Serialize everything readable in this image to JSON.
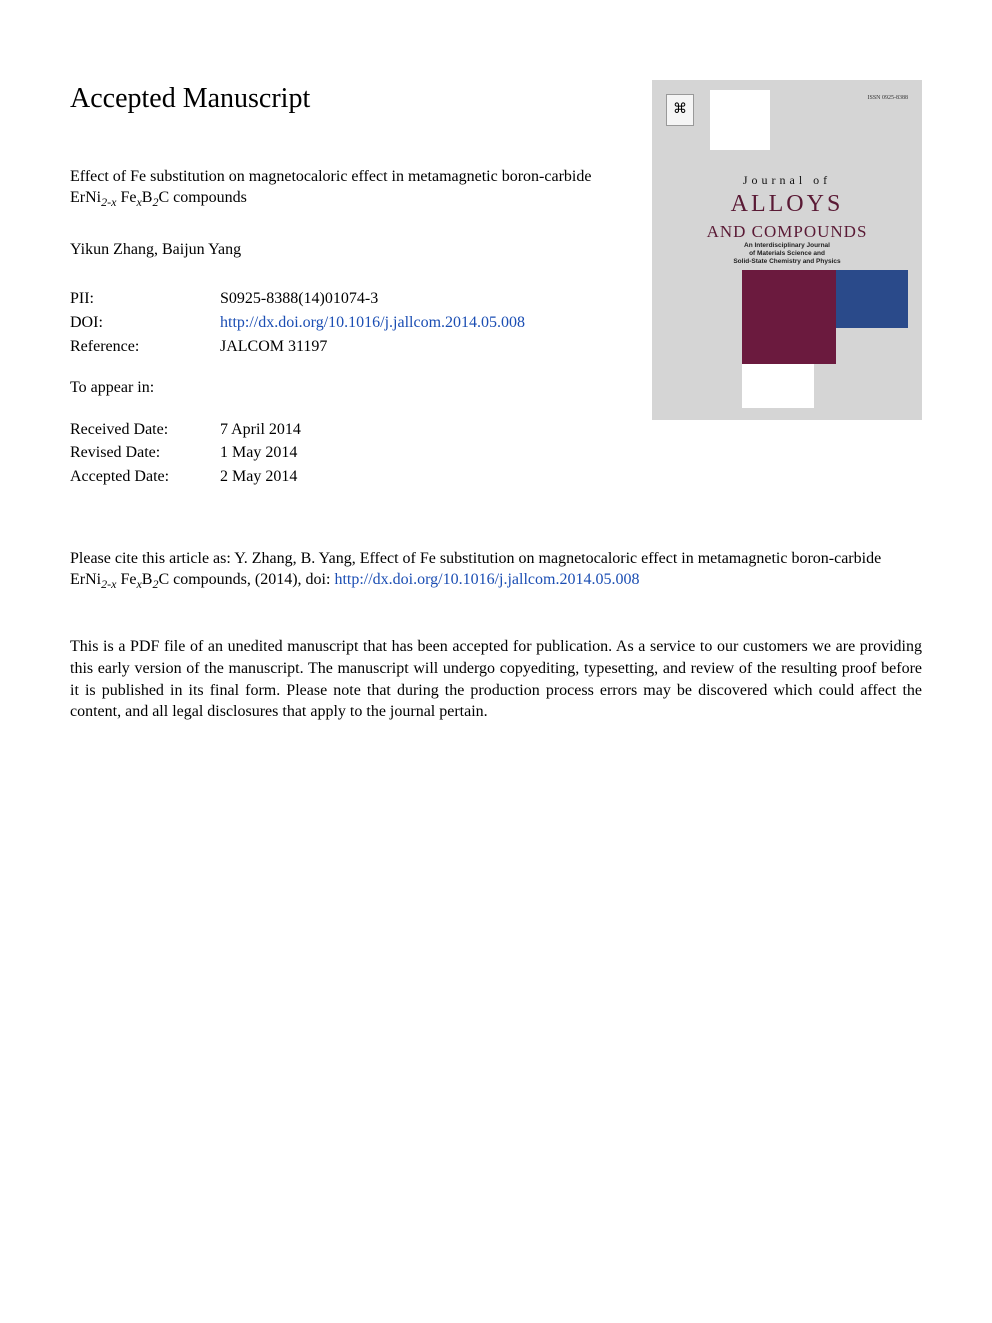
{
  "heading": "Accepted Manuscript",
  "article_title_parts": {
    "pre": "Effect of Fe substitution on magnetocaloric effect in metamagnetic boron-carbide ErNi",
    "sub1": "2-x",
    "mid1": " Fe",
    "sub2": "x",
    "mid2": "B",
    "sub3": "2",
    "post": "C compounds"
  },
  "authors": "Yikun Zhang, Baijun Yang",
  "meta1": {
    "pii_label": "PII:",
    "pii_value": "S0925-8388(14)01074-3",
    "doi_label": "DOI:",
    "doi_value": "http://dx.doi.org/10.1016/j.jallcom.2014.05.008",
    "ref_label": "Reference:",
    "ref_value": "JALCOM 31197"
  },
  "to_appear_label": "To appear in:",
  "to_appear_value": "",
  "dates": {
    "received_label": "Received Date:",
    "received_value": "7 April 2014",
    "revised_label": "Revised Date:",
    "revised_value": "1 May 2014",
    "accepted_label": "Accepted Date:",
    "accepted_value": "2 May 2014"
  },
  "citation": {
    "pre": "Please cite this article as: Y. Zhang, B. Yang, Effect of Fe substitution on magnetocaloric effect in metamagnetic boron-carbide ErNi",
    "sub1": "2-x",
    "mid1": " Fe",
    "sub2": "x",
    "mid2": "B",
    "sub3": "2",
    "post": "C compounds,   (2014), doi: ",
    "doi": "http://dx.doi.org/10.1016/j.jallcom.2014.05.008"
  },
  "disclaimer": "This is a PDF file of an unedited manuscript that has been accepted for publication. As a service to our customers we are providing this early version of the manuscript. The manuscript will undergo copyediting, typesetting, and review of the resulting proof before it is published in its final form. Please note that during the production process errors may be discovered which could affect the content, and all legal disclosures that apply to the journal pertain.",
  "cover": {
    "issn": "ISSN 0925-8388",
    "journal_of": "Journal of",
    "alloys": "ALLOYS",
    "and_compounds": "AND COMPOUNDS",
    "subtitle_l1": "An Interdisciplinary Journal",
    "subtitle_l2": "of Materials Science and",
    "subtitle_l3": "Solid-State Chemistry and Physics",
    "logo_glyph": "⌘",
    "colors": {
      "bg": "#d5d5d5",
      "maroon": "#6b1a3e",
      "blue": "#2a4a8a",
      "title_color": "#5a1a35"
    }
  }
}
